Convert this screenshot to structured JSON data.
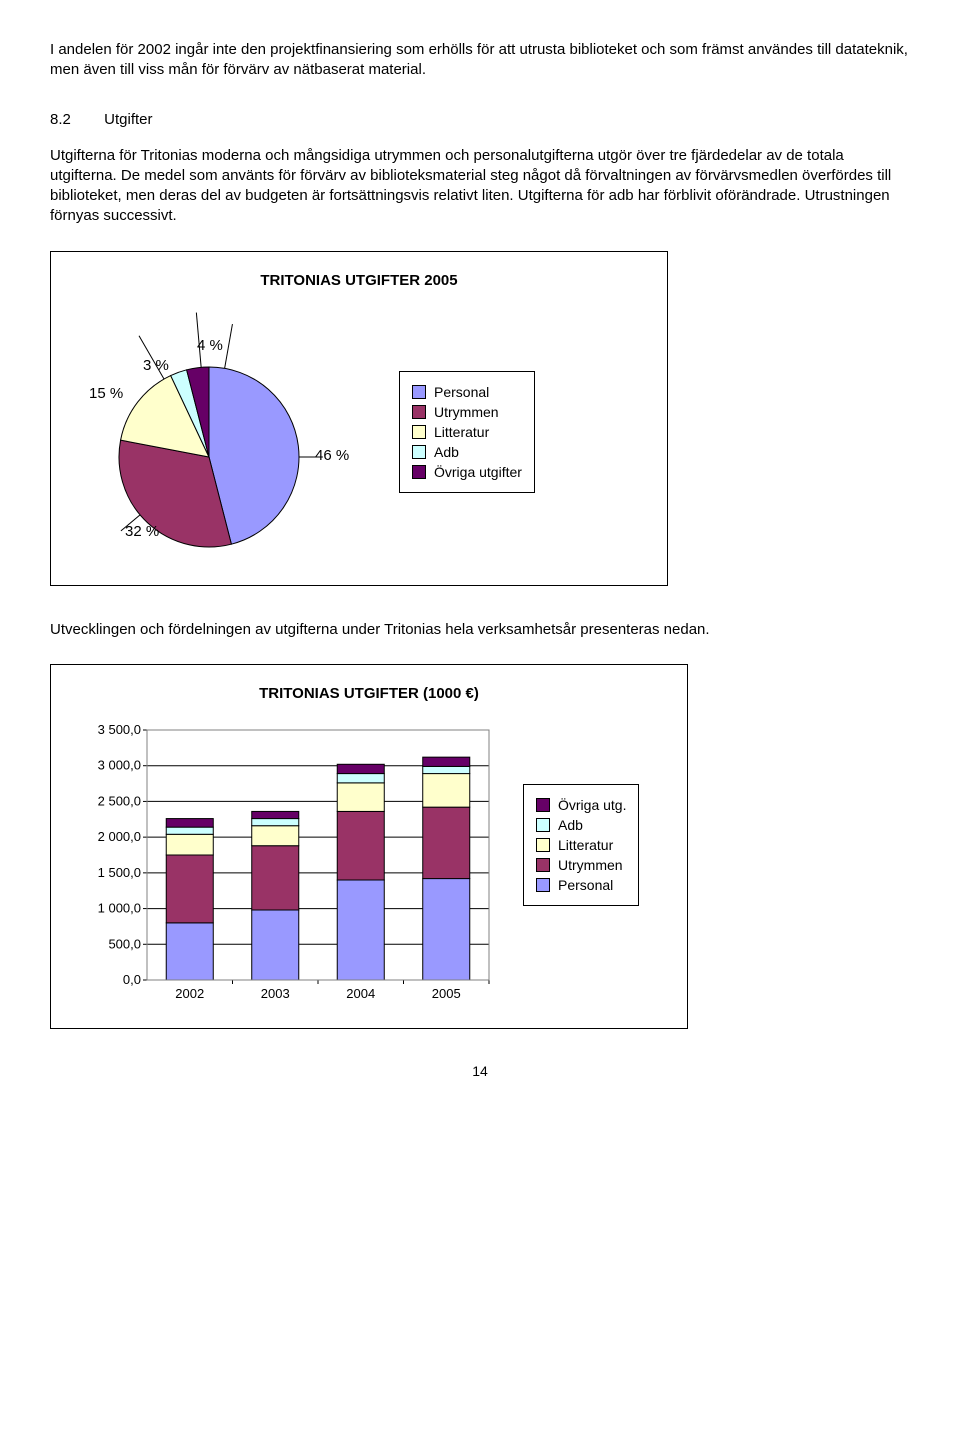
{
  "para1": "I andelen för 2002 ingår inte den projektfinansiering som erhölls för att utrusta biblioteket och som främst användes till datateknik, men även till viss mån för förvärv av nätbaserat material.",
  "heading": {
    "num": "8.2",
    "title": "Utgifter"
  },
  "para2": "Utgifterna för Tritonias moderna och mångsidiga utrymmen och personalutgifterna utgör över tre fjärdedelar av de totala utgifterna. De medel som använts för förvärv av biblioteksmaterial steg något då förvaltningen av förvärvsmedlen överfördes till biblioteket, men deras del av budgeten är fortsättningsvis relativt liten. Utgifterna för adb har förblivit oförändrade. Utrustningen förnyas successivt.",
  "pie_chart": {
    "title": "TRITONIAS UTGIFTER 2005",
    "slices": [
      {
        "label": "Personal",
        "pct": 46,
        "color": "#9999ff"
      },
      {
        "label": "Utrymmen",
        "pct": 32,
        "color": "#993366"
      },
      {
        "label": "Litteratur",
        "pct": 15,
        "color": "#ffffcc"
      },
      {
        "label": "Adb",
        "pct": 3,
        "color": "#ccffff"
      },
      {
        "label": "Övriga utgifter",
        "pct": 4,
        "color": "#660066"
      }
    ],
    "labels": {
      "p46": "46 %",
      "p32": "32 %",
      "p15": "15 %",
      "p3": "3 %",
      "p4": "4 %"
    },
    "border": "#000000"
  },
  "para3": "Utvecklingen och fördelningen av utgifterna under Tritonias hela verksamhetsår presenteras nedan.",
  "bar_chart": {
    "title": "TRITONIAS UTGIFTER (1000 €)",
    "categories": [
      "2002",
      "2003",
      "2004",
      "2005"
    ],
    "y": {
      "min": 0,
      "max": 3500,
      "step": 500,
      "labels": [
        "0,0",
        "500,0",
        "1 000,0",
        "1 500,0",
        "2 000,0",
        "2 500,0",
        "3 000,0",
        "3 500,0"
      ]
    },
    "legend": [
      "Övriga utg.",
      "Adb",
      "Litteratur",
      "Utrymmen",
      "Personal"
    ],
    "legend_colors": [
      "#660066",
      "#ccffff",
      "#ffffcc",
      "#993366",
      "#9999ff"
    ],
    "series_personal": [
      800,
      980,
      1400,
      1420
    ],
    "series_utrymmen": [
      950,
      900,
      960,
      1000
    ],
    "series_litteratur": [
      290,
      280,
      400,
      470
    ],
    "series_adb": [
      100,
      100,
      130,
      100
    ],
    "series_ovriga": [
      120,
      100,
      130,
      130
    ],
    "grid_color": "#000000",
    "bar_border": "#000000"
  },
  "page_num": "14"
}
